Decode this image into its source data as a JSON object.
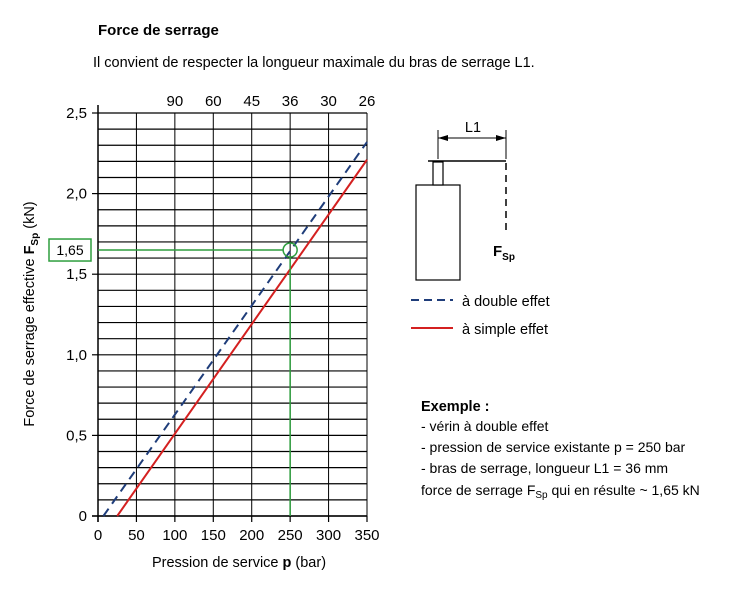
{
  "title": "Force de serrage",
  "subtitle": "Il convient de respecter la longueur maximale du bras de serrage L1.",
  "colors": {
    "double": "#1f3d7a",
    "simple": "#d42020",
    "highlight": "#2e9e3e",
    "grid": "#000000"
  },
  "legend": {
    "double_label": "à double effet",
    "simple_label": "à simple effet"
  },
  "diagram": {
    "l1_label": "L1",
    "force_label": "F",
    "force_sub": "Sp"
  },
  "example": {
    "heading": "Exemple :",
    "line1": "- vérin à double effet",
    "line2": "- pression de service existante p = 250 bar",
    "line3": "- bras de serrage, longueur L1 = 36 mm",
    "line4_pre": "force de serrage F",
    "line4_sub": "Sp",
    "line4_post": " qui en résulte ~ 1,65 kN"
  },
  "chart_data": {
    "type": "line",
    "xlabel_pre": "Pression de service ",
    "xlabel_bold": "p",
    "xlabel_post": " (bar)",
    "ylabel_pre": "Force de serrage effective ",
    "ylabel_bold": "F",
    "ylabel_sub": "Sp",
    "ylabel_post": " (kN)",
    "xlim": [
      0,
      350
    ],
    "ylim": [
      0,
      2.5
    ],
    "x_ticks": [
      0,
      50,
      100,
      150,
      200,
      250,
      300,
      350
    ],
    "x_tick_labels": [
      "0",
      "50",
      "100",
      "150",
      "200",
      "250",
      "300",
      "350"
    ],
    "y_ticks": [
      0,
      0.5,
      1.0,
      1.5,
      2.0,
      2.5
    ],
    "y_tick_labels": [
      "0",
      "0,5",
      "1,0",
      "1,5",
      "2,0",
      "2,5"
    ],
    "y_grid_step": 0.1,
    "top_axis_ticks": [
      {
        "x": 100,
        "label": "90"
      },
      {
        "x": 150,
        "label": "60"
      },
      {
        "x": 200,
        "label": "45"
      },
      {
        "x": 250,
        "label": "36"
      },
      {
        "x": 300,
        "label": "30"
      },
      {
        "x": 350,
        "label": "26"
      }
    ],
    "series": [
      {
        "name": "à double effet",
        "style": "dashed",
        "x": [
          7,
          350
        ],
        "y": [
          0,
          2.32
        ]
      },
      {
        "name": "à simple effet",
        "style": "solid",
        "x": [
          25,
          350
        ],
        "y": [
          0,
          2.21
        ]
      }
    ],
    "annotation": {
      "x": 250,
      "y": 1.65,
      "label": "1,65"
    }
  }
}
